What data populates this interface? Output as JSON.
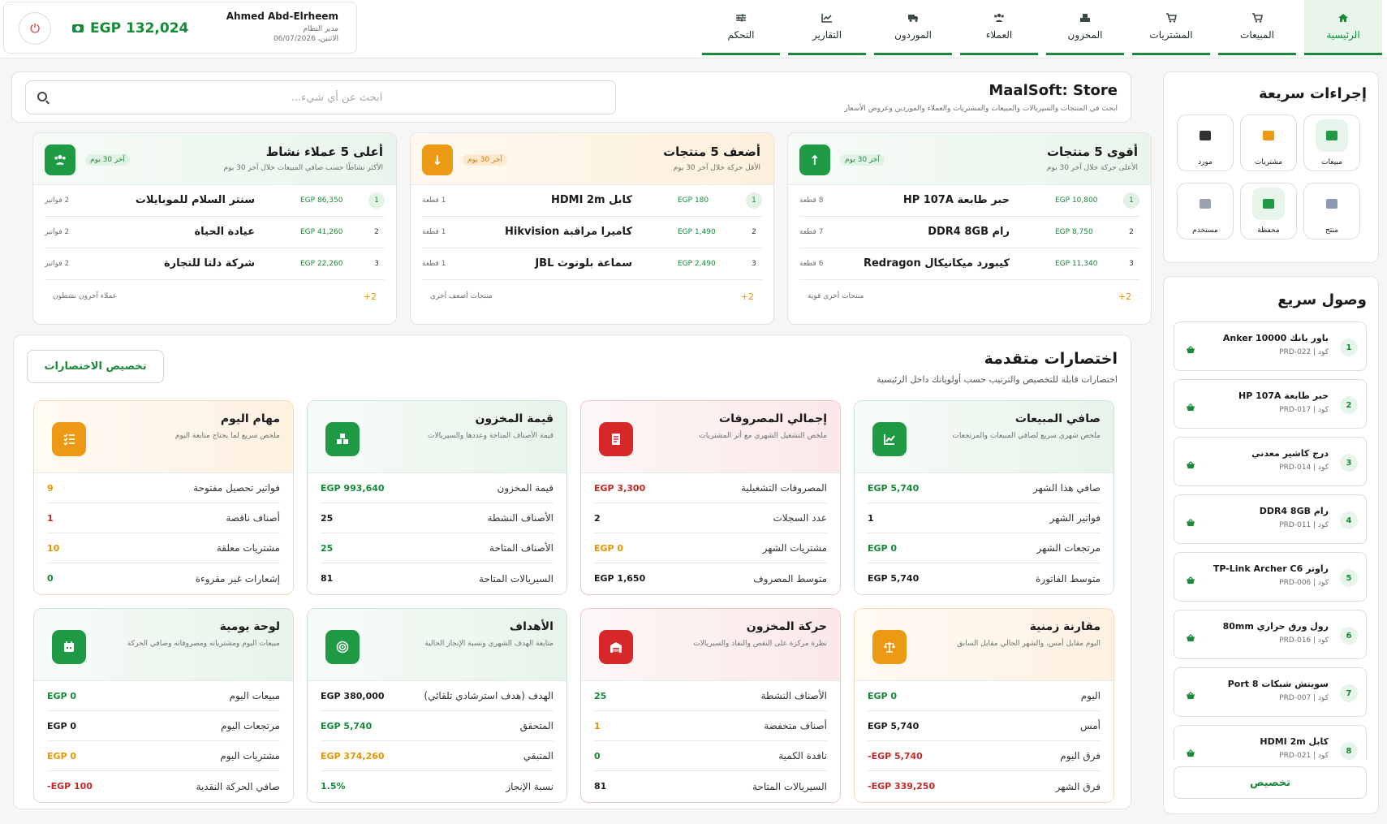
{
  "nav": [
    {
      "label": "الرئيسية",
      "icon": "home-icon",
      "active": true
    },
    {
      "label": "المبيعات",
      "icon": "cart-icon"
    },
    {
      "label": "المشتريات",
      "icon": "cart-icon"
    },
    {
      "label": "المخزون",
      "icon": "boxes-icon"
    },
    {
      "label": "العملاء",
      "icon": "users-icon"
    },
    {
      "label": "الموردون",
      "icon": "truck-icon"
    },
    {
      "label": "التقارير",
      "icon": "chart-icon"
    },
    {
      "label": "التحكم",
      "icon": "sliders-icon"
    }
  ],
  "user": {
    "name": "Ahmed Abd-Elrheem",
    "role": "مدير النظام",
    "date": "الاثنين، 06/07/2026",
    "balance": "EGP 132,024",
    "power_icon": "power-icon",
    "cash_icon": "cash-icon"
  },
  "store": {
    "title": "MaalSoft: Store",
    "subtitle": "ابحث في المنتجات والسيريالات والمبيعات والمشتريات والعملاء والموردين وعروض الأسعار",
    "search_placeholder": "ابحث عن أي شيء..."
  },
  "top5": [
    {
      "title": "أقوى 5 منتجات",
      "subtitle": "الأعلى حركة خلال آخر 30 يوم",
      "badge": "آخر 30 يوم",
      "tone": "green",
      "icon": "arrow-up-icon",
      "rows": [
        {
          "num": "1",
          "amount": "EGP 10,800",
          "name": "حبر طابعة HP 107A",
          "count": "8 قطعة"
        },
        {
          "num": "2",
          "amount": "EGP 8,750",
          "name": "رام DDR4 8GB",
          "count": "7 قطعة"
        },
        {
          "num": "3",
          "amount": "EGP 11,340",
          "name": "كيبورد ميكانيكال Redragon",
          "count": "6 قطعة"
        }
      ],
      "footer_more": "+2",
      "footer_text": "منتجات أخرى قوية"
    },
    {
      "title": "أضعف 5 منتجات",
      "subtitle": "الأقل حركة خلال آخر 30 يوم",
      "badge": "آخر 30 يوم",
      "tone": "orange",
      "icon": "arrow-down-icon",
      "rows": [
        {
          "num": "1",
          "amount": "EGP 180",
          "name": "كابل HDMI 2m",
          "count": "1 قطعة"
        },
        {
          "num": "2",
          "amount": "EGP 1,490",
          "name": "كاميرا مراقبة Hikvision",
          "count": "1 قطعة"
        },
        {
          "num": "3",
          "amount": "EGP 2,490",
          "name": "سماعة بلوتوث JBL",
          "count": "1 قطعة"
        }
      ],
      "footer_more": "+2",
      "footer_text": "منتجات أضعف أخرى"
    },
    {
      "title": "أعلى 5 عملاء نشاط",
      "subtitle": "الأكثر نشاطًا حسب صافي المبيعات خلال آخر 30 يوم",
      "badge": "آخر 30 يوم",
      "tone": "green",
      "icon": "users-icon",
      "rows": [
        {
          "num": "1",
          "amount": "EGP 86,350",
          "name": "سنتر السلام للموبايلات",
          "count": "2 فواتير"
        },
        {
          "num": "2",
          "amount": "EGP 41,260",
          "name": "عيادة الحياة",
          "count": "2 فواتير"
        },
        {
          "num": "3",
          "amount": "EGP 22,260",
          "name": "شركة دلتا للتجارة",
          "count": "2 فواتير"
        }
      ],
      "footer_more": "+2",
      "footer_text": "عملاء آخرون نشطون"
    }
  ],
  "advanced": {
    "title": "اختصارات متقدمة",
    "subtitle": "اختصارات قابلة للتخصيص والترتيب حسب أولوياتك داخل الرئيسية",
    "customize_label": "تخصيص الاختصارات",
    "cards": [
      {
        "title": "صافي المبيعات",
        "desc": "ملخص شهري سريع لصافي المبيعات والمرتجعات",
        "tone": "green",
        "icon": "chart-line-icon",
        "rows": [
          {
            "label": "صافي هذا الشهر",
            "value": "EGP 5,740",
            "c": "green"
          },
          {
            "label": "فواتير الشهر",
            "value": "1",
            "c": "dark"
          },
          {
            "label": "مرتجعات الشهر",
            "value": "EGP 0",
            "c": "green"
          },
          {
            "label": "متوسط الفاتورة",
            "value": "EGP 5,740",
            "c": "dark"
          }
        ]
      },
      {
        "title": "إجمالي المصروفات",
        "desc": "ملخص التشغيل الشهري مع أثر المشتريات",
        "tone": "red",
        "icon": "receipt-icon",
        "rows": [
          {
            "label": "المصروفات التشغيلية",
            "value": "EGP 3,300",
            "c": "red"
          },
          {
            "label": "عدد السجلات",
            "value": "2",
            "c": "dark"
          },
          {
            "label": "مشتريات الشهر",
            "value": "EGP 0",
            "c": "orange"
          },
          {
            "label": "متوسط المصروف",
            "value": "EGP 1,650",
            "c": "dark"
          }
        ]
      },
      {
        "title": "قيمة المخزون",
        "desc": "قيمة الأصناف المتاحة وعددها والسيريالات",
        "tone": "green",
        "icon": "boxes-icon",
        "rows": [
          {
            "label": "قيمة المخزون",
            "value": "EGP 993,640",
            "c": "green"
          },
          {
            "label": "الأصناف النشطة",
            "value": "25",
            "c": "dark"
          },
          {
            "label": "الأصناف المتاحة",
            "value": "25",
            "c": "green"
          },
          {
            "label": "السيريالات المتاحة",
            "value": "81",
            "c": "dark"
          }
        ]
      },
      {
        "title": "مهام اليوم",
        "desc": "ملخص سريع لما يحتاج متابعة اليوم",
        "tone": "orange",
        "icon": "tasks-icon",
        "rows": [
          {
            "label": "فواتير تحصيل مفتوحة",
            "value": "9",
            "c": "orange"
          },
          {
            "label": "أصناف ناقصة",
            "value": "1",
            "c": "red"
          },
          {
            "label": "مشتريات معلقة",
            "value": "10",
            "c": "orange"
          },
          {
            "label": "إشعارات غير مقروءة",
            "value": "0",
            "c": "green"
          }
        ]
      },
      {
        "title": "مقارنة زمنية",
        "desc": "اليوم مقابل أمس، والشهر الحالي مقابل السابق",
        "tone": "orange",
        "icon": "scale-icon",
        "rows": [
          {
            "label": "اليوم",
            "value": "EGP 0",
            "c": "green"
          },
          {
            "label": "أمس",
            "value": "EGP 5,740",
            "c": "dark"
          },
          {
            "label": "فرق اليوم",
            "value": "-EGP 5,740",
            "c": "red"
          },
          {
            "label": "فرق الشهر",
            "value": "-EGP 339,250",
            "c": "red"
          }
        ]
      },
      {
        "title": "حركة المخزون",
        "desc": "نظرة مركزة على النقص والنفاد والسيريالات",
        "tone": "red",
        "icon": "warehouse-icon",
        "rows": [
          {
            "label": "الأصناف النشطة",
            "value": "25",
            "c": "green"
          },
          {
            "label": "أصناف منخفضة",
            "value": "1",
            "c": "orange"
          },
          {
            "label": "نافدة الكمية",
            "value": "0",
            "c": "green"
          },
          {
            "label": "السيريالات المتاحة",
            "value": "81",
            "c": "dark"
          }
        ]
      },
      {
        "title": "الأهداف",
        "desc": "متابعة الهدف الشهري ونسبة الإنجاز الحالية",
        "tone": "green",
        "icon": "target-icon",
        "rows": [
          {
            "label": "الهدف (هدف استرشادي تلقائي)",
            "value": "EGP 380,000",
            "c": "dark"
          },
          {
            "label": "المتحقق",
            "value": "EGP 5,740",
            "c": "green"
          },
          {
            "label": "المتبقي",
            "value": "EGP 374,260",
            "c": "orange"
          },
          {
            "label": "نسبة الإنجاز",
            "value": "1.5%",
            "c": "green"
          }
        ]
      },
      {
        "title": "لوحة يومية",
        "desc": "مبيعات اليوم ومشترياته ومصروفاته وصافي الحركة",
        "tone": "green",
        "icon": "calendar-icon",
        "rows": [
          {
            "label": "مبيعات اليوم",
            "value": "EGP 0",
            "c": "green"
          },
          {
            "label": "مرتجعات اليوم",
            "value": "EGP 0",
            "c": "dark"
          },
          {
            "label": "مشتريات اليوم",
            "value": "EGP 0",
            "c": "orange"
          },
          {
            "label": "صافي الحركة النقدية",
            "value": "-EGP 100",
            "c": "red"
          }
        ]
      }
    ]
  },
  "quick_actions": {
    "title": "إجراءات سريعة",
    "items": [
      {
        "label": "مبيعات",
        "icon": "invoice-icon",
        "active": true
      },
      {
        "label": "مشتريات",
        "icon": "cart-icon",
        "active": false
      },
      {
        "label": "مورد",
        "icon": "truck-icon",
        "active": false
      },
      {
        "label": "منتج",
        "icon": "boxes-icon",
        "active": false
      },
      {
        "label": "محفظة",
        "icon": "wallet-icon",
        "active": true
      },
      {
        "label": "مستخدم",
        "icon": "user-plus-icon",
        "active": false
      }
    ]
  },
  "quick_access": {
    "title": "وصول سريع",
    "items": [
      {
        "num": "1",
        "name": "باور بانك Anker 10000",
        "code": "كود | PRD-022"
      },
      {
        "num": "2",
        "name": "حبر طابعة HP 107A",
        "code": "كود | PRD-017"
      },
      {
        "num": "3",
        "name": "درج كاشير معدني",
        "code": "كود | PRD-014"
      },
      {
        "num": "4",
        "name": "رام DDR4 8GB",
        "code": "كود | PRD-011"
      },
      {
        "num": "5",
        "name": "راوتر TP-Link Archer C6",
        "code": "كود | PRD-006"
      },
      {
        "num": "6",
        "name": "رول ورق حراري 80mm",
        "code": "كود | PRD-016"
      },
      {
        "num": "7",
        "name": "سويتش شبكات 8 Port",
        "code": "كود | PRD-007"
      },
      {
        "num": "8",
        "name": "كابل HDMI 2m",
        "code": "كود | PRD-021"
      }
    ],
    "customize_label": "تخصيص"
  },
  "colors": {
    "accent": "#1a8a3a",
    "red": "#d62828",
    "orange": "#ec9a14"
  }
}
